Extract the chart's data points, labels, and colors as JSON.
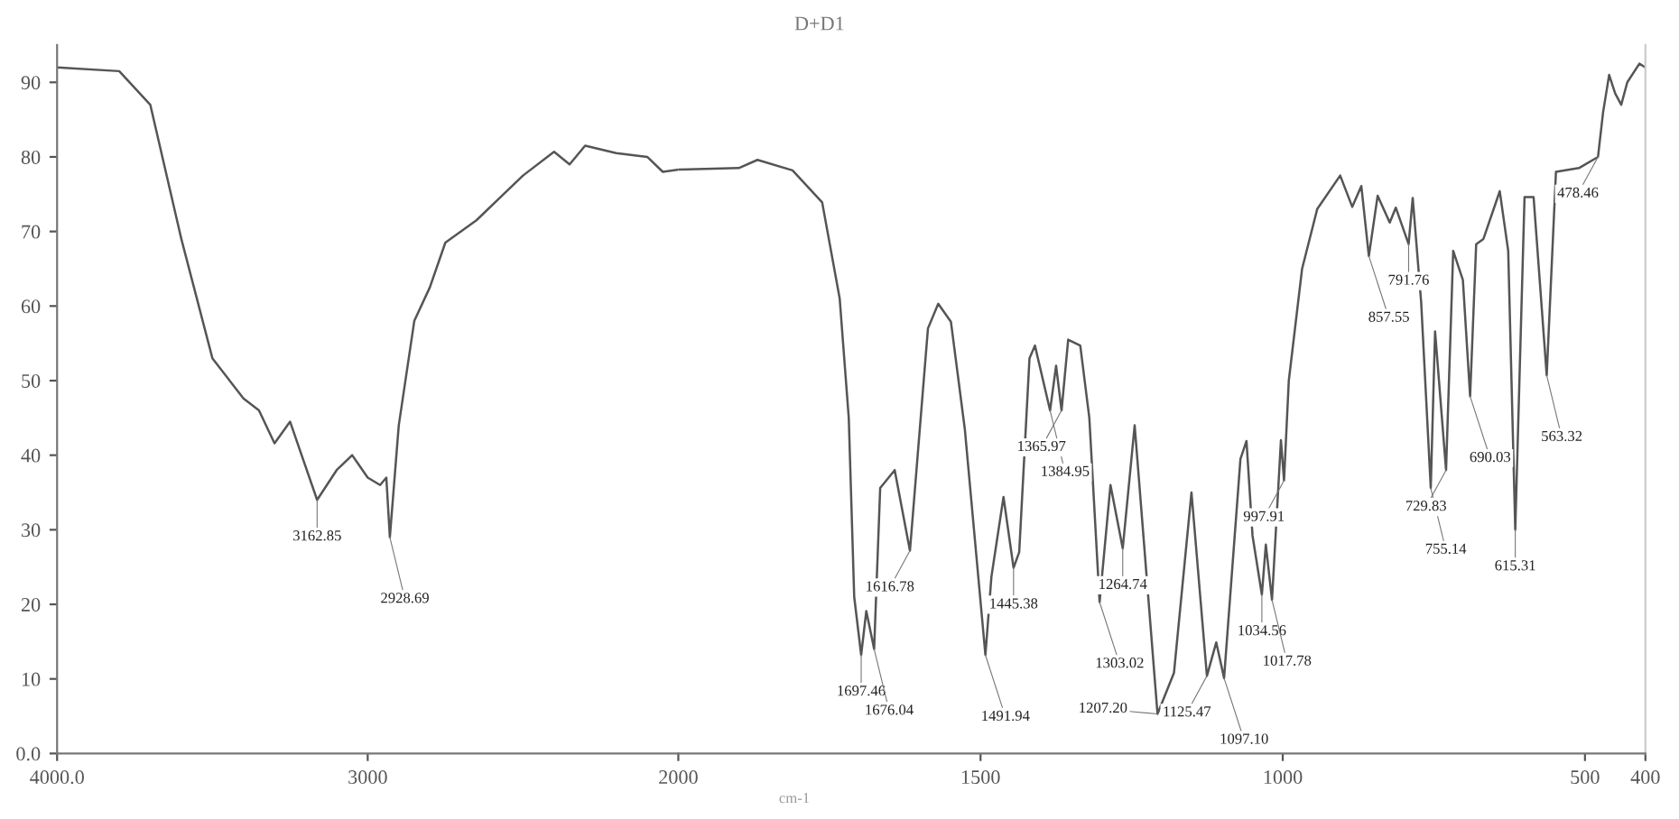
{
  "chart_data": [
    {
      "type": "line",
      "xlim": [
        4000,
        2000
      ],
      "ylim": [
        0,
        95
      ],
      "xticks": [
        {
          "value": 4000,
          "label": "4000.0"
        },
        3000,
        2000
      ],
      "yticks": [
        {
          "value": 0,
          "label": "0.0"
        },
        10,
        20,
        30,
        40,
        50,
        60,
        70,
        80,
        90
      ],
      "series": [
        {
          "color": "#555555",
          "x": [
            4000,
            3800,
            3700,
            3600,
            3500,
            3400,
            3350,
            3300,
            3250,
            3162.85,
            3100,
            3050,
            3000,
            2960,
            2940,
            2928.69,
            2900,
            2850,
            2800,
            2750,
            2650,
            2550,
            2500,
            2400,
            2350,
            2300,
            2200,
            2100,
            2050,
            2000
          ],
          "values": [
            92,
            91.5,
            87,
            69,
            53,
            47.6,
            46,
            41.6,
            44.5,
            34,
            38,
            40,
            37,
            36,
            37,
            29,
            44,
            58,
            62.5,
            68.5,
            71.5,
            75.5,
            77.5,
            80.7,
            79,
            81.5,
            80.5,
            80,
            78,
            78.3
          ]
        }
      ],
      "annotations": [
        {
          "text": "3162.85",
          "x": 3162.85,
          "y": 34
        },
        {
          "text": "2928.69",
          "x": 2928.69,
          "y": 29
        }
      ]
    },
    {
      "type": "line",
      "title": "D+D1",
      "xlabel": "cm-1",
      "xlim": [
        2000,
        400
      ],
      "ylim": [
        0,
        95
      ],
      "tick_labels": "x",
      "xticks": [
        1500,
        1000,
        500,
        400
      ],
      "series": [
        {
          "color": "#555555",
          "x": [
            2000,
            1900,
            1869,
            1811,
            1762,
            1733,
            1718,
            1709,
            1697.46,
            1689,
            1676.04,
            1666,
            1642,
            1616.78,
            1599,
            1587,
            1570,
            1549,
            1526,
            1491.94,
            1482,
            1462,
            1445.38,
            1436,
            1419,
            1410,
            1384.95,
            1375,
            1365.97,
            1355,
            1335,
            1320,
            1303.02,
            1285,
            1264.74,
            1245,
            1207.2,
            1180,
            1151,
            1125.47,
            1110,
            1097.1,
            1070,
            1060,
            1050,
            1034.56,
            1028,
            1017.78,
            1003,
            997.91,
            990,
            968,
            943,
            905,
            885,
            870,
            857.55,
            843,
            823,
            813,
            791.76,
            785,
            771,
            755.14,
            748,
            729.83,
            718,
            702,
            690.03,
            680,
            668,
            641,
            627,
            615.31,
            600,
            585,
            563.32,
            548,
            510,
            478.46,
            470,
            460,
            450,
            440,
            430,
            410,
            400
          ],
          "values": [
            78.3,
            78.5,
            79.6,
            78.2,
            73.9,
            61,
            45,
            21,
            13.2,
            19.1,
            14,
            35.6,
            38,
            27.2,
            45,
            57,
            60.3,
            57.9,
            43.5,
            13.2,
            23.7,
            34.4,
            24.9,
            27,
            53,
            54.7,
            46,
            52,
            46,
            55.5,
            54.7,
            45,
            20.3,
            36,
            27.5,
            44,
            5.3,
            10.8,
            35,
            10.4,
            14.9,
            10.1,
            39.5,
            41.9,
            29.2,
            21.3,
            28,
            20.6,
            42,
            36.6,
            50,
            65,
            73,
            77.5,
            73.3,
            76.1,
            66.7,
            74.8,
            71.2,
            73.2,
            68.3,
            74.5,
            60.5,
            35.6,
            56.6,
            38,
            67.4,
            63.5,
            47.9,
            68.3,
            69,
            75.4,
            67.4,
            30,
            74.6,
            74.6,
            50.7,
            78,
            78.5,
            80,
            86,
            91,
            88.5,
            87,
            90,
            92.5,
            92
          ]
        }
      ],
      "annotations": [
        {
          "text": "1697.46",
          "x": 1697.46,
          "y": 13.2
        },
        {
          "text": "1676.04",
          "x": 1676.04,
          "y": 14
        },
        {
          "text": "1616.78",
          "x": 1616.78,
          "y": 27.2
        },
        {
          "text": "1491.94",
          "x": 1491.94,
          "y": 13.2
        },
        {
          "text": "1445.38",
          "x": 1445.38,
          "y": 24.9
        },
        {
          "text": "1384.95",
          "x": 1384.95,
          "y": 46
        },
        {
          "text": "1365.97",
          "x": 1365.97,
          "y": 46
        },
        {
          "text": "1303.02",
          "x": 1303.02,
          "y": 20.3
        },
        {
          "text": "1264.74",
          "x": 1264.74,
          "y": 27.5
        },
        {
          "text": "1207.20",
          "x": 1207.2,
          "y": 5.3
        },
        {
          "text": "1125.47",
          "x": 1125.47,
          "y": 10.4
        },
        {
          "text": "1097.10",
          "x": 1097.1,
          "y": 10.1
        },
        {
          "text": "1034.56",
          "x": 1034.56,
          "y": 21.3
        },
        {
          "text": "1017.78",
          "x": 1017.78,
          "y": 20.6
        },
        {
          "text": "997.91",
          "x": 997.91,
          "y": 36.6
        },
        {
          "text": "857.55",
          "x": 857.55,
          "y": 66.7
        },
        {
          "text": "791.76",
          "x": 791.76,
          "y": 68.3
        },
        {
          "text": "755.14",
          "x": 755.14,
          "y": 35.6
        },
        {
          "text": "729.83",
          "x": 729.83,
          "y": 38
        },
        {
          "text": "690.03",
          "x": 690.03,
          "y": 47.9
        },
        {
          "text": "615.31",
          "x": 615.31,
          "y": 30
        },
        {
          "text": "563.32",
          "x": 563.32,
          "y": 50.7
        },
        {
          "text": "478.46",
          "x": 478.46,
          "y": 80
        }
      ]
    }
  ]
}
